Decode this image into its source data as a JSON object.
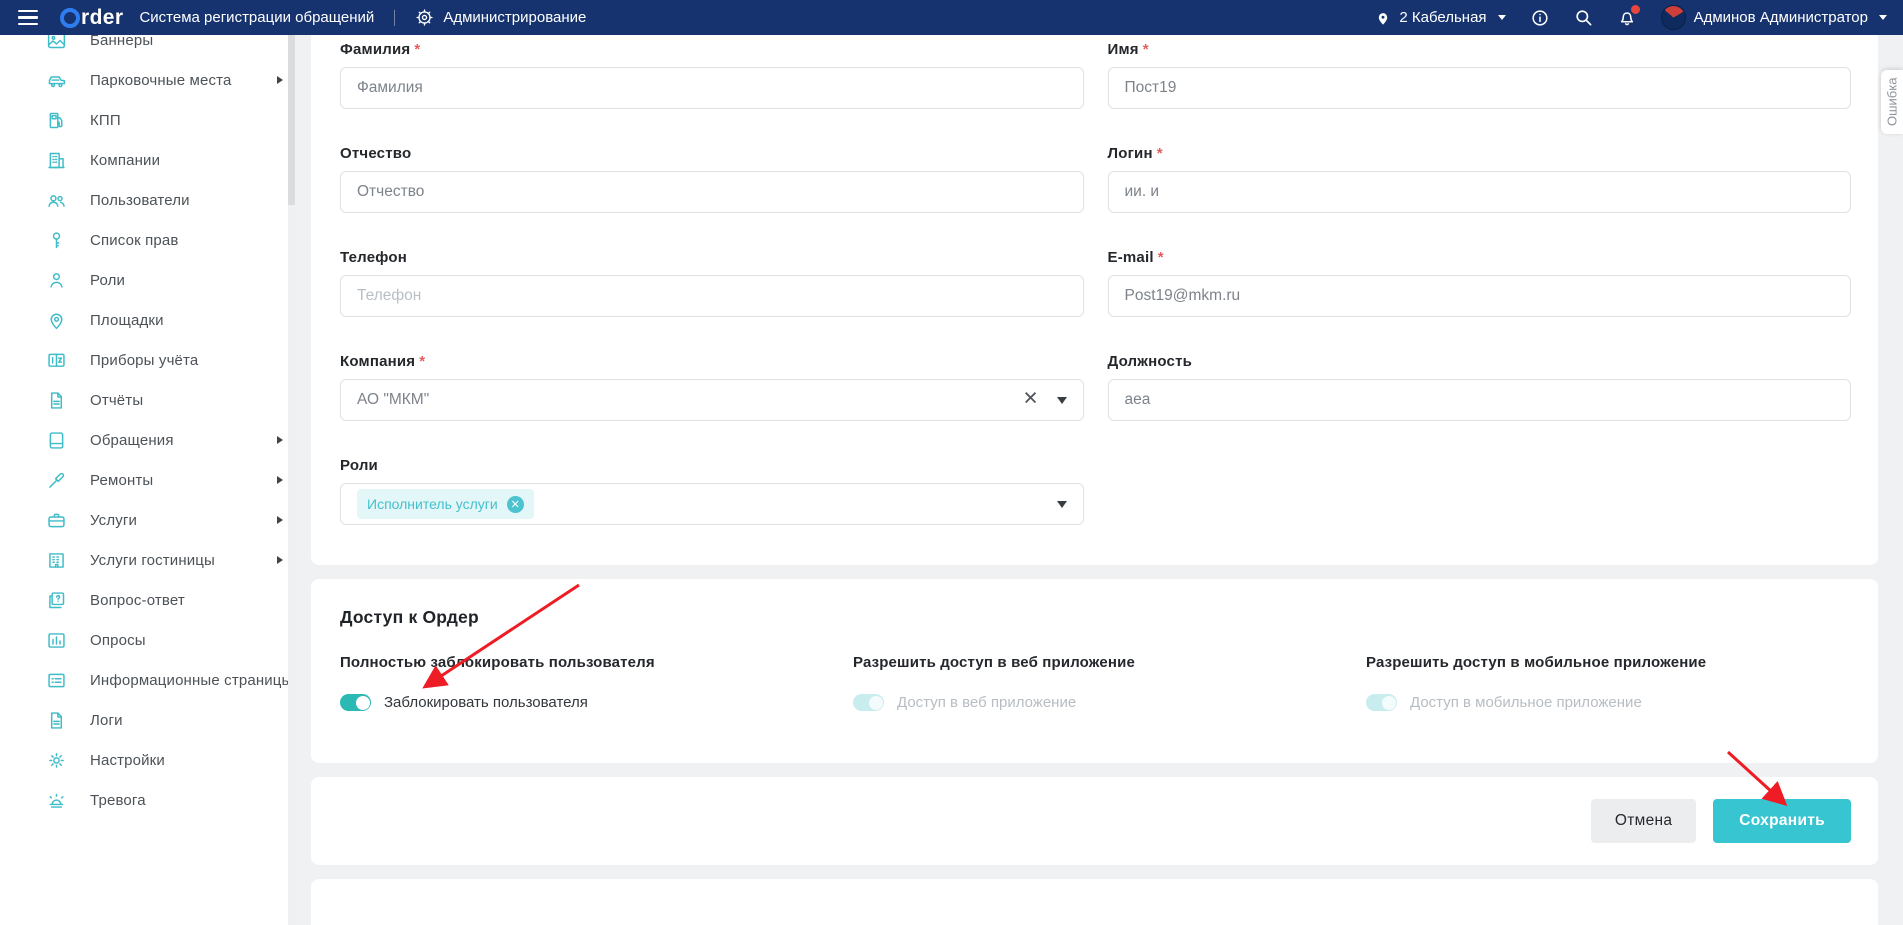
{
  "header": {
    "logo": "Order",
    "app_subtitle": "Система регистрации обращений",
    "section": "Администрирование",
    "location": "2 Кабельная",
    "user": "Админов Администратор"
  },
  "sidebar": {
    "items": [
      {
        "key": "banners",
        "label": "Баннеры",
        "icon": "image-icon",
        "submenu": false
      },
      {
        "key": "parking",
        "label": "Парковочные места",
        "icon": "car-icon",
        "submenu": true
      },
      {
        "key": "kpp",
        "label": "КПП",
        "icon": "checkpoint-icon",
        "submenu": false
      },
      {
        "key": "companies",
        "label": "Компании",
        "icon": "building-icon",
        "submenu": false
      },
      {
        "key": "users",
        "label": "Пользователи",
        "icon": "users-icon",
        "submenu": false
      },
      {
        "key": "permissions",
        "label": "Список прав",
        "icon": "key-icon",
        "submenu": false
      },
      {
        "key": "roles",
        "label": "Роли",
        "icon": "person-icon",
        "submenu": false
      },
      {
        "key": "sites",
        "label": "Площадки",
        "icon": "location-icon",
        "submenu": false
      },
      {
        "key": "meters",
        "label": "Приборы учёта",
        "icon": "meter-icon",
        "submenu": false
      },
      {
        "key": "reports",
        "label": "Отчёты",
        "icon": "report-icon",
        "submenu": false
      },
      {
        "key": "requests",
        "label": "Обращения",
        "icon": "book-icon",
        "submenu": true
      },
      {
        "key": "repairs",
        "label": "Ремонты",
        "icon": "tool-icon",
        "submenu": true
      },
      {
        "key": "services",
        "label": "Услуги",
        "icon": "briefcase-icon",
        "submenu": true
      },
      {
        "key": "hotel-services",
        "label": "Услуги гостиницы",
        "icon": "hotel-icon",
        "submenu": true
      },
      {
        "key": "faq",
        "label": "Вопрос-ответ",
        "icon": "question-icon",
        "submenu": false
      },
      {
        "key": "polls",
        "label": "Опросы",
        "icon": "chart-icon",
        "submenu": false
      },
      {
        "key": "info-pages",
        "label": "Информационные страницы",
        "icon": "list-icon",
        "submenu": false
      },
      {
        "key": "logs",
        "label": "Логи",
        "icon": "document-icon",
        "submenu": false
      },
      {
        "key": "settings",
        "label": "Настройки",
        "icon": "gear-icon",
        "submenu": false
      },
      {
        "key": "alarm",
        "label": "Тревога",
        "icon": "alarm-icon",
        "submenu": false
      }
    ]
  },
  "required_mark": "*",
  "form": {
    "lastname": {
      "label": "Фамилия",
      "required": true,
      "value": "Фамилия",
      "placeholder": "Фамилия"
    },
    "firstname": {
      "label": "Имя",
      "required": true,
      "value": "Пост19",
      "placeholder": ""
    },
    "middlename": {
      "label": "Отчество",
      "required": false,
      "value": "Отчество",
      "placeholder": "Отчество"
    },
    "login": {
      "label": "Логин",
      "required": true,
      "value": "ии. и",
      "placeholder": ""
    },
    "phone": {
      "label": "Телефон",
      "required": false,
      "value": "",
      "placeholder": "Телефон"
    },
    "email": {
      "label": "E-mail",
      "required": true,
      "value": "Post19@mkm.ru",
      "placeholder": ""
    },
    "company": {
      "label": "Компания",
      "required": true,
      "value": "АО \"МКМ\""
    },
    "position": {
      "label": "Должность",
      "required": false,
      "value": "aea",
      "placeholder": ""
    },
    "roles": {
      "label": "Роли",
      "chip": "Исполнитель услуги"
    }
  },
  "access": {
    "title": "Доступ к Ордер",
    "items": [
      {
        "key": "block-user",
        "heading": "Полностью заблокировать пользователя",
        "toggle_label": "Заблокировать пользователя",
        "on": true,
        "disabled": false
      },
      {
        "key": "web-access",
        "heading": "Разрешить доступ в веб приложение",
        "toggle_label": "Доступ в веб приложение",
        "on": true,
        "disabled": true
      },
      {
        "key": "mobile-access",
        "heading": "Разрешить доступ в мобильное приложение",
        "toggle_label": "Доступ в мобильное приложение",
        "on": true,
        "disabled": true
      }
    ]
  },
  "actions": {
    "cancel": "Отмена",
    "save": "Сохранить"
  },
  "error_tab": "Ошибка",
  "colors": {
    "header_bg": "#16336f",
    "accent_teal": "#38c5d2",
    "toggle_on": "#2bb9b4",
    "toggle_disabled": "#c9ecee",
    "logo_blue": "#2e7df0",
    "arrow_red": "#ee1c24",
    "required_red": "#e25f5f",
    "badge_red": "#e8453c"
  }
}
